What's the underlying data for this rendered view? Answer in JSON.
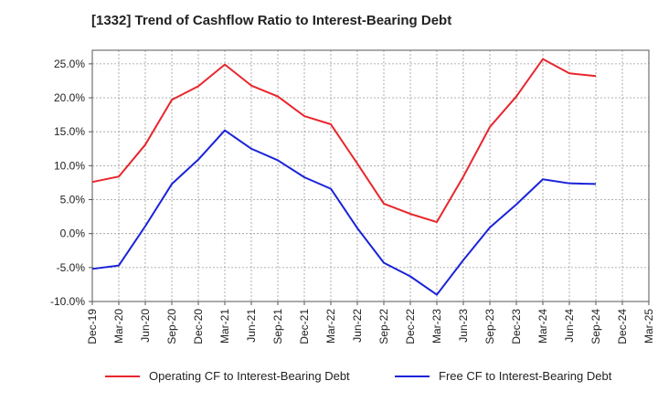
{
  "title": "[1332]  Trend of Cashflow Ratio to Interest-Bearing Debt",
  "colors": {
    "operating": "#e8262d",
    "free": "#1a23d8",
    "grid": "#999999"
  },
  "chart_data": {
    "type": "line",
    "title": "[1332]  Trend of Cashflow Ratio to Interest-Bearing Debt",
    "xlabel": "",
    "ylabel": "",
    "ylim": [
      -10,
      27
    ],
    "yticks": [
      -10,
      -5,
      0,
      5,
      10,
      15,
      20,
      25
    ],
    "ytick_labels": [
      "-10.0%",
      "-5.0%",
      "0.0%",
      "5.0%",
      "10.0%",
      "15.0%",
      "20.0%",
      "25.0%"
    ],
    "categories": [
      "Dec-19",
      "Mar-20",
      "Jun-20",
      "Sep-20",
      "Dec-20",
      "Mar-21",
      "Jun-21",
      "Sep-21",
      "Dec-21",
      "Mar-22",
      "Jun-22",
      "Sep-22",
      "Dec-22",
      "Mar-23",
      "Jun-23",
      "Sep-23",
      "Dec-23",
      "Mar-24",
      "Jun-24",
      "Sep-24",
      "Dec-24",
      "Mar-25"
    ],
    "grid": true,
    "legend_position": "bottom",
    "series": [
      {
        "name": "Operating CF to Interest-Bearing Debt",
        "color": "#e8262d",
        "values": [
          7.6,
          8.4,
          13.1,
          19.7,
          21.7,
          24.9,
          21.8,
          20.2,
          17.3,
          16.1,
          10.3,
          4.4,
          2.9,
          1.7,
          8.4,
          15.7,
          20.2,
          25.7,
          23.6,
          23.2,
          null,
          null
        ]
      },
      {
        "name": "Free CF to Interest-Bearing Debt",
        "color": "#1a23d8",
        "values": [
          -5.2,
          -4.7,
          1.1,
          7.3,
          10.9,
          15.2,
          12.5,
          10.8,
          8.3,
          6.6,
          0.8,
          -4.3,
          -6.3,
          -9.0,
          -3.9,
          0.9,
          4.3,
          8.0,
          7.4,
          7.3,
          null,
          null
        ]
      }
    ]
  },
  "legend": {
    "operating_label": "Operating CF to Interest-Bearing Debt",
    "free_label": "Free CF to Interest-Bearing Debt"
  }
}
